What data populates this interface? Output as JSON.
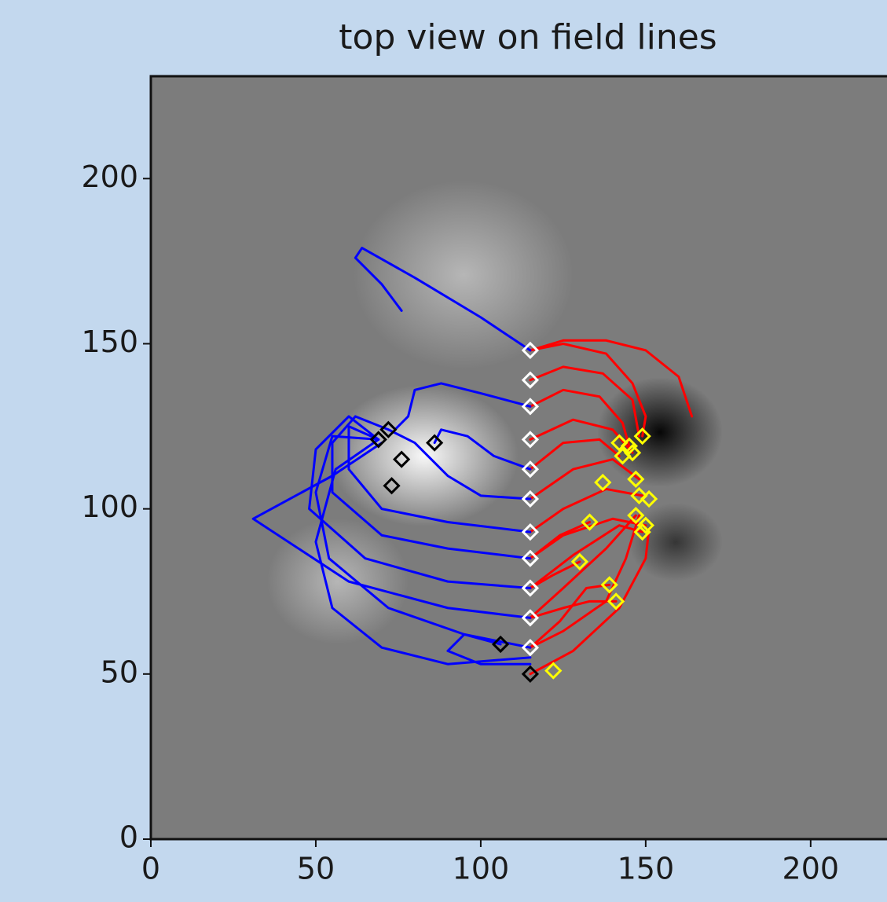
{
  "chart_data": {
    "type": "line",
    "title": "top view on field lines",
    "xlim": [
      0,
      231
    ],
    "ylim": [
      0,
      231
    ],
    "xticks": [
      0,
      50,
      100,
      150,
      200
    ],
    "yticks": [
      0,
      50,
      100,
      150,
      200
    ],
    "series": [
      {
        "mode": "line",
        "color": "#ff0000",
        "x": [
          115,
          125,
          138,
          150,
          160,
          164
        ],
        "values": [
          148,
          151,
          151,
          148,
          140,
          128
        ]
      },
      {
        "mode": "line",
        "color": "#ff0000",
        "x": [
          115,
          125,
          138,
          146,
          150,
          149
        ],
        "values": [
          148,
          150,
          147,
          138,
          128,
          122
        ]
      },
      {
        "mode": "line",
        "color": "#ff0000",
        "x": [
          115,
          125,
          137,
          146,
          148
        ],
        "values": [
          139,
          143,
          141,
          133,
          122
        ]
      },
      {
        "mode": "line",
        "color": "#ff0000",
        "x": [
          115,
          125,
          136,
          143,
          145
        ],
        "values": [
          131,
          136,
          134,
          126,
          119
        ]
      },
      {
        "mode": "line",
        "color": "#ff0000",
        "x": [
          115,
          128,
          140,
          146
        ],
        "values": [
          121,
          127,
          124,
          117
        ]
      },
      {
        "mode": "line",
        "color": "#ff0000",
        "x": [
          115,
          125,
          136,
          142
        ],
        "values": [
          112,
          120,
          121,
          116
        ]
      },
      {
        "mode": "line",
        "color": "#ff0000",
        "x": [
          115,
          128,
          140,
          148
        ],
        "values": [
          103,
          112,
          115,
          109
        ]
      },
      {
        "mode": "line",
        "color": "#ff0000",
        "x": [
          115,
          125,
          138,
          149
        ],
        "values": [
          93,
          100,
          106,
          104
        ]
      },
      {
        "mode": "line",
        "color": "#ff0000",
        "x": [
          115,
          125,
          140,
          150
        ],
        "values": [
          85,
          92,
          97,
          95
        ]
      },
      {
        "mode": "line",
        "color": "#ff0000",
        "x": [
          115,
          128,
          142,
          149
        ],
        "values": [
          76,
          86,
          95,
          93
        ]
      },
      {
        "mode": "line",
        "color": "#ff0000",
        "x": [
          115,
          125,
          138,
          147
        ],
        "values": [
          67,
          76,
          88,
          98
        ]
      },
      {
        "mode": "line",
        "color": "#ff0000",
        "x": [
          115,
          125,
          138,
          144,
          148
        ],
        "values": [
          58,
          63,
          72,
          85,
          98
        ]
      },
      {
        "mode": "line",
        "color": "#ff0000",
        "x": [
          115,
          128,
          142,
          150,
          151
        ],
        "values": [
          50,
          57,
          70,
          85,
          94
        ]
      },
      {
        "mode": "line",
        "color": "#ff0000",
        "x": [
          115,
          125,
          133,
          141
        ],
        "values": [
          67,
          70,
          72,
          72
        ]
      },
      {
        "mode": "line",
        "color": "#ff0000",
        "x": [
          115,
          124,
          132,
          139
        ],
        "values": [
          58,
          66,
          76,
          77
        ]
      },
      {
        "mode": "line",
        "color": "#ff0000",
        "x": [
          115,
          122,
          130
        ],
        "values": [
          76,
          80,
          84
        ]
      },
      {
        "mode": "line",
        "color": "#ff0000",
        "x": [
          115,
          124,
          133
        ],
        "values": [
          85,
          92,
          96
        ]
      },
      {
        "mode": "line",
        "color": "#0000ff",
        "x": [
          115,
          100,
          80,
          64,
          62,
          70,
          76
        ],
        "values": [
          148,
          158,
          170,
          179,
          176,
          168,
          160
        ]
      },
      {
        "mode": "line",
        "color": "#0000ff",
        "x": [
          115,
          100,
          88,
          80,
          78,
          74
        ],
        "values": [
          131,
          135,
          138,
          136,
          128,
          124
        ]
      },
      {
        "mode": "line",
        "color": "#0000ff",
        "x": [
          115,
          104,
          96,
          88,
          86
        ],
        "values": [
          112,
          116,
          122,
          124,
          120
        ]
      },
      {
        "mode": "line",
        "color": "#0000ff",
        "x": [
          115,
          100,
          90,
          80,
          72
        ],
        "values": [
          103,
          104,
          110,
          120,
          124
        ]
      },
      {
        "mode": "line",
        "color": "#0000ff",
        "x": [
          115,
          90,
          70,
          60,
          60,
          69
        ],
        "values": [
          93,
          96,
          100,
          112,
          125,
          121
        ]
      },
      {
        "mode": "line",
        "color": "#0000ff",
        "x": [
          115,
          90,
          70,
          55,
          55,
          62,
          72
        ],
        "values": [
          85,
          88,
          92,
          105,
          120,
          128,
          124
        ]
      },
      {
        "mode": "line",
        "color": "#0000ff",
        "x": [
          115,
          90,
          65,
          48,
          50,
          60,
          69
        ],
        "values": [
          76,
          78,
          85,
          100,
          118,
          128,
          121
        ]
      },
      {
        "mode": "line",
        "color": "#0000ff",
        "x": [
          115,
          90,
          60,
          31,
          55,
          70
        ],
        "values": [
          67,
          70,
          78,
          97,
          110,
          120
        ]
      },
      {
        "mode": "line",
        "color": "#0000ff",
        "x": [
          115,
          95,
          72,
          54,
          50,
          55,
          69
        ],
        "values": [
          58,
          62,
          70,
          85,
          105,
          122,
          121
        ]
      },
      {
        "mode": "line",
        "color": "#0000ff",
        "x": [
          115,
          90,
          70,
          55,
          50,
          56,
          69
        ],
        "values": [
          55,
          53,
          58,
          70,
          90,
          112,
          121
        ]
      },
      {
        "mode": "line",
        "color": "#0000ff",
        "x": [
          115,
          100,
          90,
          95,
          106
        ],
        "values": [
          53,
          53,
          57,
          62,
          59
        ]
      },
      {
        "mode": "markers",
        "marker": "diamond",
        "color": "#ffffff",
        "x": [
          115,
          115,
          115,
          115,
          115,
          115,
          115,
          115,
          115,
          115,
          115
        ],
        "values": [
          148,
          139,
          131,
          121,
          112,
          103,
          93,
          85,
          76,
          67,
          58
        ]
      },
      {
        "mode": "markers",
        "marker": "diamond",
        "color": "#000000",
        "x": [
          115,
          72,
          69,
          76,
          73,
          86,
          106
        ],
        "values": [
          50,
          124,
          121,
          115,
          107,
          120,
          59
        ]
      },
      {
        "mode": "markers",
        "marker": "diamond",
        "color": "#ffff00",
        "x": [
          122,
          141,
          139,
          130,
          133,
          147,
          149,
          150,
          148,
          151,
          147,
          137,
          143,
          146,
          142,
          149,
          145
        ],
        "values": [
          51,
          72,
          77,
          84,
          96,
          98,
          93,
          95,
          104,
          103,
          109,
          108,
          116,
          117,
          120,
          122,
          119
        ]
      }
    ]
  }
}
